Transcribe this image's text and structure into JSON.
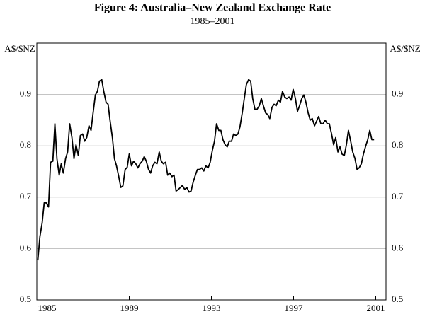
{
  "chart_data": {
    "type": "line",
    "title": "Figure 4: Australia–New Zealand Exchange Rate",
    "subtitle": "1985–2001",
    "ylabel": "A$/$NZ",
    "y2label": "A$/$NZ",
    "xlim": [
      1984.5,
      2001.5
    ],
    "xticks": [
      1985,
      1989,
      1993,
      1997,
      2001
    ],
    "ylim": [
      0.5,
      1.0
    ],
    "yticks": [
      0.5,
      0.6,
      0.7,
      0.8,
      0.9
    ],
    "y2lim": [
      0.5,
      1.0
    ],
    "y2ticks": [
      0.5,
      0.6,
      0.7,
      0.8,
      0.9
    ],
    "grid": true,
    "x": [
      1984.55,
      1984.65,
      1984.76,
      1984.86,
      1984.96,
      1985.07,
      1985.17,
      1985.28,
      1985.38,
      1985.48,
      1985.59,
      1985.69,
      1985.79,
      1985.9,
      1986.0,
      1986.1,
      1986.21,
      1986.31,
      1986.41,
      1986.52,
      1986.62,
      1986.73,
      1986.83,
      1986.93,
      1987.04,
      1987.14,
      1987.24,
      1987.35,
      1987.45,
      1987.55,
      1987.66,
      1987.76,
      1987.87,
      1987.97,
      1988.07,
      1988.18,
      1988.28,
      1988.38,
      1988.49,
      1988.59,
      1988.69,
      1988.8,
      1988.9,
      1989.0,
      1989.11,
      1989.21,
      1989.32,
      1989.42,
      1989.52,
      1989.63,
      1989.73,
      1989.83,
      1989.94,
      1990.04,
      1990.14,
      1990.25,
      1990.35,
      1990.46,
      1990.56,
      1990.66,
      1990.77,
      1990.87,
      1990.97,
      1991.08,
      1991.18,
      1991.28,
      1991.39,
      1991.49,
      1991.59,
      1991.7,
      1991.8,
      1991.91,
      1992.01,
      1992.11,
      1992.22,
      1992.32,
      1992.42,
      1992.53,
      1992.63,
      1992.73,
      1992.84,
      1992.94,
      1993.05,
      1993.15,
      1993.25,
      1993.36,
      1993.46,
      1993.56,
      1993.67,
      1993.77,
      1993.87,
      1993.98,
      1994.08,
      1994.19,
      1994.29,
      1994.39,
      1994.5,
      1994.6,
      1994.7,
      1994.81,
      1994.91,
      1995.01,
      1995.12,
      1995.22,
      1995.33,
      1995.43,
      1995.53,
      1995.64,
      1995.74,
      1995.84,
      1995.95,
      1996.05,
      1996.15,
      1996.26,
      1996.36,
      1996.46,
      1996.57,
      1996.67,
      1996.78,
      1996.88,
      1996.98,
      1997.09,
      1997.19,
      1997.29,
      1997.4,
      1997.5,
      1997.6,
      1997.71,
      1997.81,
      1997.91,
      1998.02,
      1998.12,
      1998.22,
      1998.33,
      1998.43,
      1998.54,
      1998.64,
      1998.74,
      1998.85,
      1998.95,
      1999.05,
      1999.16,
      1999.26,
      1999.36,
      1999.47,
      1999.57,
      1999.67,
      1999.78,
      1999.88,
      1999.99,
      2000.09,
      2000.19,
      2000.3,
      2000.4,
      2000.5,
      2000.61,
      2000.71,
      2000.81,
      2000.92
    ],
    "series": [
      {
        "name": "A$/$NZ",
        "color": "#000000",
        "values": [
          0.577,
          0.623,
          0.65,
          0.689,
          0.689,
          0.681,
          0.768,
          0.77,
          0.843,
          0.775,
          0.743,
          0.765,
          0.747,
          0.775,
          0.788,
          0.843,
          0.816,
          0.775,
          0.802,
          0.781,
          0.82,
          0.823,
          0.809,
          0.816,
          0.839,
          0.83,
          0.864,
          0.899,
          0.906,
          0.926,
          0.929,
          0.906,
          0.885,
          0.881,
          0.848,
          0.816,
          0.775,
          0.761,
          0.74,
          0.719,
          0.722,
          0.754,
          0.758,
          0.784,
          0.761,
          0.77,
          0.765,
          0.757,
          0.765,
          0.77,
          0.779,
          0.77,
          0.754,
          0.747,
          0.761,
          0.768,
          0.765,
          0.788,
          0.77,
          0.765,
          0.768,
          0.743,
          0.747,
          0.74,
          0.743,
          0.712,
          0.715,
          0.719,
          0.723,
          0.715,
          0.719,
          0.71,
          0.712,
          0.729,
          0.743,
          0.754,
          0.754,
          0.757,
          0.751,
          0.761,
          0.757,
          0.768,
          0.792,
          0.809,
          0.843,
          0.83,
          0.83,
          0.812,
          0.802,
          0.798,
          0.809,
          0.809,
          0.823,
          0.82,
          0.823,
          0.837,
          0.864,
          0.892,
          0.919,
          0.929,
          0.926,
          0.892,
          0.871,
          0.871,
          0.878,
          0.892,
          0.878,
          0.864,
          0.861,
          0.853,
          0.875,
          0.881,
          0.878,
          0.889,
          0.885,
          0.906,
          0.895,
          0.892,
          0.895,
          0.889,
          0.91,
          0.892,
          0.867,
          0.878,
          0.892,
          0.899,
          0.885,
          0.864,
          0.85,
          0.853,
          0.839,
          0.848,
          0.857,
          0.843,
          0.843,
          0.85,
          0.843,
          0.843,
          0.823,
          0.802,
          0.816,
          0.788,
          0.798,
          0.784,
          0.781,
          0.802,
          0.83,
          0.809,
          0.788,
          0.775,
          0.754,
          0.757,
          0.765,
          0.784,
          0.798,
          0.812,
          0.83,
          0.812,
          0.812
        ]
      }
    ]
  }
}
